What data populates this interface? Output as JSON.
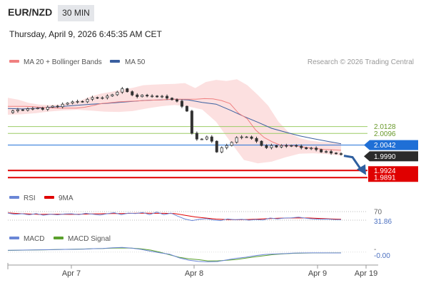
{
  "header": {
    "symbol": "EUR/NZD",
    "timeframe": "30 MIN",
    "datetime": "Thursday, April 9, 2026 6:45:35 AM CET"
  },
  "legend": {
    "ma20": "MA 20 + Bollinger Bands",
    "ma50": "MA 50",
    "copyright": "Research © 2026 Trading Central"
  },
  "colors": {
    "ma20": "#f08080",
    "ma50": "#3a5fa0",
    "band_fill": "#fbd6d6",
    "candle": "#333333",
    "resistance": "#9ccc65",
    "support": "#e00000",
    "last_price": "#1f6fd6",
    "rsi": "#6a86d6",
    "rsi_ma": "#e00000",
    "macd": "#6a86d6",
    "macd_signal": "#5aa02c",
    "arrow": "#2f5f9f"
  },
  "chart_data": {
    "type": "candlestick",
    "x_ticks": [
      "Apr 7",
      "Apr 8",
      "Apr 9",
      "Apr 19"
    ],
    "y_range": [
      1.9862,
      2.0385
    ],
    "price": [
      2.0193,
      2.0201,
      2.0206,
      2.0204,
      2.0211,
      2.0212,
      2.0214,
      2.0208,
      2.0218,
      2.0223,
      2.022,
      2.0232,
      2.0237,
      2.0243,
      2.0245,
      2.0243,
      2.0255,
      2.0263,
      2.026,
      2.0262,
      2.027,
      2.0276,
      2.0288,
      2.0304,
      2.029,
      2.0275,
      2.0267,
      2.0274,
      2.027,
      2.027,
      2.0266,
      2.0269,
      2.026,
      2.0253,
      2.0246,
      2.0222,
      2.02,
      2.0097,
      2.007,
      2.007,
      2.008,
      2.006,
      2.001,
      2.003,
      2.004,
      2.0055,
      2.0077,
      2.008,
      2.008,
      2.0073,
      2.006,
      2.004,
      2.003,
      2.004,
      2.0033,
      2.004,
      2.0037,
      2.004,
      2.0037,
      2.003,
      2.0025,
      2.0028,
      2.0021,
      2.001,
      2.0012,
      2.0005,
      2.0002,
      1.9999
    ],
    "ma20": [
      2.0222,
      2.0222,
      2.0222,
      2.022,
      2.0217,
      2.0215,
      2.0214,
      2.0214,
      2.0214,
      2.0218,
      2.0226,
      2.0235,
      2.0239,
      2.0243,
      2.0245,
      2.0247,
      2.0249,
      2.0251,
      2.0252,
      2.0255,
      2.0255,
      2.0255,
      2.0255,
      2.0258,
      2.0257,
      2.0249,
      2.0235,
      2.019,
      2.0165,
      2.0112,
      2.0077,
      2.0056,
      2.004,
      2.004,
      2.0037,
      2.003,
      2.0027,
      2.0022,
      2.002,
      2.0018
    ],
    "ma50": [
      2.0212,
      2.021,
      2.0213,
      2.0218,
      2.0222,
      2.0227,
      2.0232,
      2.0235,
      2.024,
      2.0245,
      2.025,
      2.0252,
      2.0255,
      2.0252,
      2.024,
      2.0232,
      2.0205,
      2.0175,
      2.0148,
      2.012,
      2.0102,
      2.0085,
      2.0072,
      2.006,
      2.0048
    ],
    "bb_upper": [
      2.0262,
      2.0253,
      2.0238,
      2.023,
      2.0228,
      2.023,
      2.024,
      2.025,
      2.0268,
      2.0282,
      2.029,
      2.03,
      2.0308,
      2.032,
      2.0323,
      2.0325,
      2.0326,
      2.033,
      2.0307,
      2.0335,
      2.0345,
      2.034,
      2.0348,
      2.032,
      2.0275,
      2.0225,
      2.015,
      2.01,
      2.0075,
      2.0063,
      2.0057,
      2.0055,
      2.0047
    ],
    "bb_lower": [
      2.0183,
      2.0185,
      2.019,
      2.0198,
      2.0203,
      2.0206,
      2.0202,
      2.0197,
      2.0196,
      2.02,
      2.0212,
      2.0222,
      2.0228,
      2.0221,
      2.0207,
      2.015,
      2.006,
      1.9973,
      1.9957,
      1.9965,
      1.9985,
      2.0002,
      2.0004,
      2.0,
      1.9993
    ],
    "levels": [
      {
        "value": "2.0128",
        "kind": "resistance"
      },
      {
        "value": "2.0096",
        "kind": "resistance"
      },
      {
        "value": "2.0042",
        "kind": "last"
      },
      {
        "value": "1.9990",
        "kind": "current"
      },
      {
        "value": "1.9924",
        "kind": "support"
      },
      {
        "value": "1.9891",
        "kind": "support"
      }
    ],
    "rsi": {
      "label": "RSI",
      "ma_label": "9MA",
      "level_label": "70",
      "value": "31.86",
      "range": [
        0,
        100
      ],
      "rsi_values": [
        63,
        57,
        60,
        55,
        61,
        53,
        58,
        55,
        59,
        60,
        56,
        62,
        58,
        54,
        60,
        65,
        56,
        63,
        61,
        66,
        56,
        68,
        56,
        63,
        48,
        35,
        28,
        34,
        37,
        31,
        28,
        36,
        32,
        34,
        30,
        33,
        31,
        40,
        36,
        40,
        41,
        44,
        39,
        36,
        34,
        35,
        33,
        32
      ],
      "ma_values": [
        64,
        61,
        59,
        57,
        58,
        58,
        57,
        58,
        59,
        60,
        61,
        61,
        62,
        63,
        62,
        62,
        61,
        53,
        45,
        40,
        35,
        33,
        32,
        33,
        35,
        37,
        39,
        40,
        41,
        40,
        38,
        36,
        34
      ]
    },
    "macd": {
      "label": "MACD",
      "signal_label": "MACD Signal",
      "zero_label": "-",
      "value": "-0.00",
      "range": [
        -15,
        10
      ],
      "macd_values": [
        2.3,
        2.5,
        2.7,
        2.9,
        3.1,
        3.3,
        3.5,
        3.6,
        3.9,
        4.4,
        4.7,
        5.6,
        6.0,
        5.1,
        3.5,
        1.1,
        -1.0,
        -2.9,
        -7.5,
        -10.5,
        -12.1,
        -12.7,
        -12.3,
        -10.1,
        -8.1,
        -6.7,
        -4.5,
        -3.1,
        -2.5,
        -2.0,
        -1.4,
        -1.1,
        -1.0,
        -1.0,
        -1.1,
        -1.1
      ],
      "signal_values": [
        2.1,
        2.3,
        2.6,
        2.8,
        3.0,
        3.2,
        3.5,
        3.7,
        4.0,
        4.4,
        4.6,
        5.1,
        5.4,
        5.1,
        4.2,
        2.6,
        -0.2,
        -3.5,
        -6.8,
        -8.7,
        -9.8,
        -11.4,
        -11.4,
        -10.6,
        -9.6,
        -7.9,
        -6.1,
        -4.5,
        -3.1,
        -2.2,
        -1.6,
        -1.3,
        -1.1,
        -1.1,
        -1.0,
        -1.0
      ]
    }
  }
}
